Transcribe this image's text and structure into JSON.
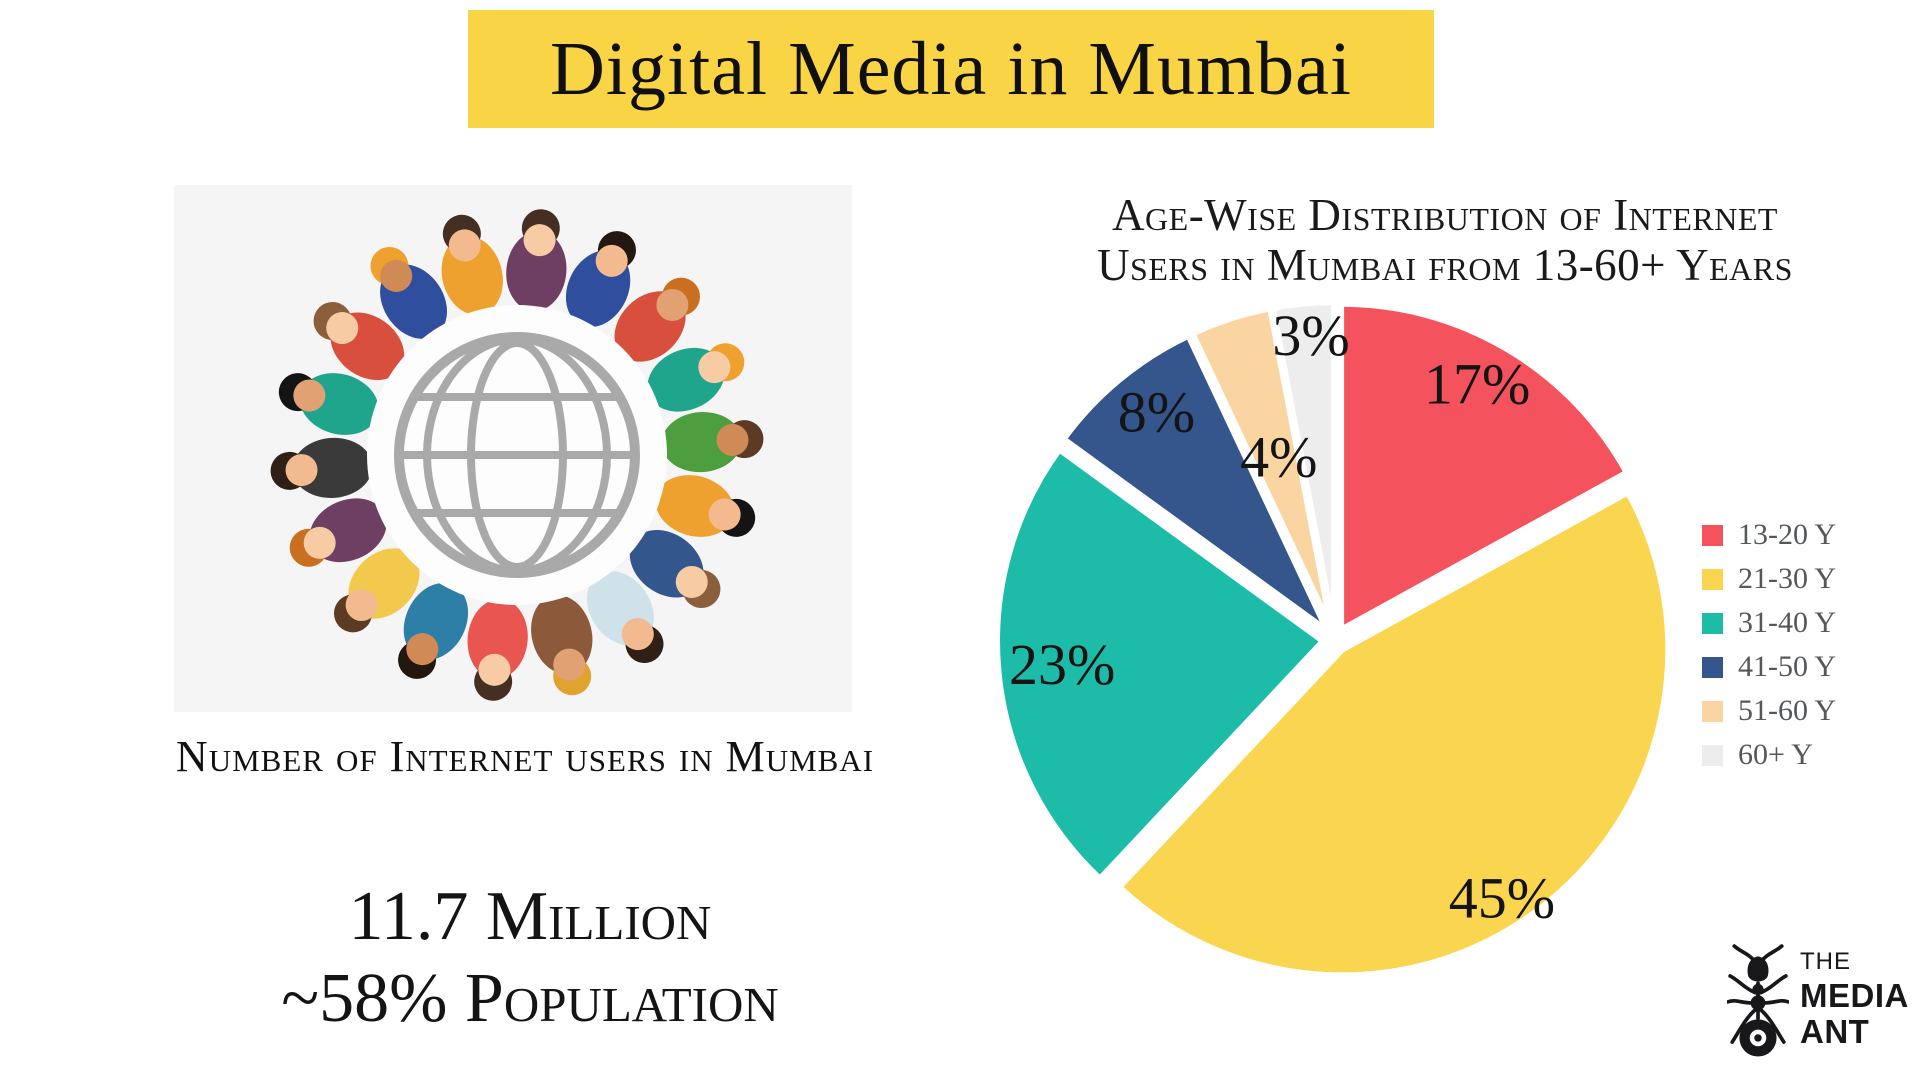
{
  "title": {
    "text": "Digital Media in Mumbai",
    "background_color": "#F9D445"
  },
  "left_panel": {
    "illustration": "people-around-globe",
    "caption": "Number of Internet users in Mumbai",
    "stat_line1": "11.7 Million",
    "stat_line2": "~58% Population"
  },
  "chart_data": {
    "type": "pie",
    "title_line1": "Age-Wise Distribution of Internet",
    "title_line2": "Users in Mumbai from 13-60+ Years",
    "categories": [
      "13-20 Y",
      "21-30 Y",
      "31-40 Y",
      "41-50 Y",
      "51-60 Y",
      "60+ Y"
    ],
    "values": [
      17,
      45,
      23,
      8,
      4,
      3
    ],
    "labels": [
      "17%",
      "45%",
      "23%",
      "8%",
      "4%",
      "3%"
    ],
    "colors": [
      "#F4535E",
      "#FAD54F",
      "#1DBCA8",
      "#34568C",
      "#FAD5A2",
      "#EDEDED"
    ],
    "start_angle_deg": 0,
    "direction": "clockwise",
    "legend_position": "right",
    "legend_text_color": "#55585A",
    "label_angles_deg": [
      29,
      147,
      265,
      322,
      343,
      355.5
    ],
    "label_radius_frac": [
      0.9,
      0.94,
      0.84,
      0.89,
      0.59,
      0.94
    ]
  },
  "logo": {
    "icon": "ant-icon",
    "line1": "THE",
    "line2": "MEDIA",
    "line3": "ANT"
  }
}
